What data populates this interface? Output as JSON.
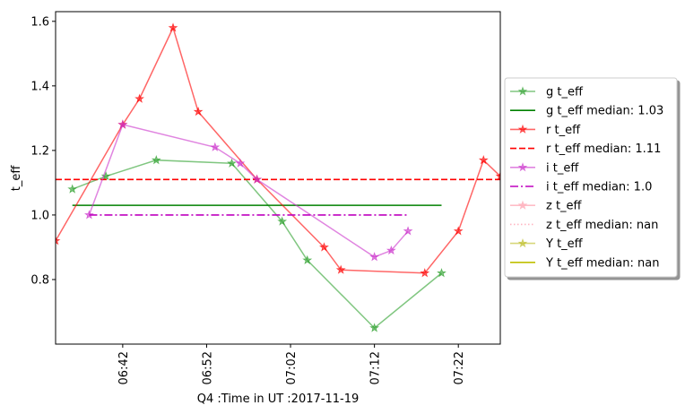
{
  "chart_data": {
    "type": "line",
    "ylabel": "t_eff",
    "xlabel": "Q4 :Time in UT :2017-11-19",
    "xlim": [
      "06:34",
      "07:27"
    ],
    "ylim": [
      0.6,
      1.63
    ],
    "y_ticks": [
      0.8,
      1.0,
      1.2,
      1.4,
      1.6
    ],
    "x_ticks": [
      "06:42",
      "06:52",
      "07:02",
      "07:12",
      "07:22"
    ],
    "grid": false,
    "legend_placement": "outside-right",
    "series": [
      {
        "name": "g t_eff",
        "color": "#2ca02c",
        "marker": "star",
        "points": [
          {
            "x": "06:36",
            "y": 1.08
          },
          {
            "x": "06:40",
            "y": 1.12
          },
          {
            "x": "06:46",
            "y": 1.17
          },
          {
            "x": "06:55",
            "y": 1.16
          },
          {
            "x": "07:01",
            "y": 0.98
          },
          {
            "x": "07:04",
            "y": 0.86
          },
          {
            "x": "07:12",
            "y": 0.65
          },
          {
            "x": "07:20",
            "y": 0.82
          }
        ]
      },
      {
        "name": "g t_eff median: 1.03",
        "color": "#008000",
        "style": "solid",
        "points": [
          {
            "x": "06:36",
            "y": 1.03
          },
          {
            "x": "07:20",
            "y": 1.03
          }
        ]
      },
      {
        "name": "r t_eff",
        "color": "#ff0000",
        "marker": "star",
        "points": [
          {
            "x": "06:34",
            "y": 0.92
          },
          {
            "x": "06:42",
            "y": 1.28
          },
          {
            "x": "06:44",
            "y": 1.36
          },
          {
            "x": "06:48",
            "y": 1.58
          },
          {
            "x": "06:51",
            "y": 1.32
          },
          {
            "x": "06:58",
            "y": 1.11
          },
          {
            "x": "07:06",
            "y": 0.9
          },
          {
            "x": "07:08",
            "y": 0.83
          },
          {
            "x": "07:18",
            "y": 0.82
          },
          {
            "x": "07:22",
            "y": 0.95
          },
          {
            "x": "07:25",
            "y": 1.17
          },
          {
            "x": "07:27",
            "y": 1.12
          }
        ]
      },
      {
        "name": "r t_eff median: 1.11",
        "color": "#ff0000",
        "style": "dashed",
        "points": [
          {
            "x": "06:34",
            "y": 1.11
          },
          {
            "x": "07:27",
            "y": 1.11
          }
        ]
      },
      {
        "name": "i t_eff",
        "color": "#cc33cc",
        "marker": "star",
        "points": [
          {
            "x": "06:38",
            "y": 1.0
          },
          {
            "x": "06:42",
            "y": 1.28
          },
          {
            "x": "06:53",
            "y": 1.21
          },
          {
            "x": "06:56",
            "y": 1.16
          },
          {
            "x": "06:58",
            "y": 1.11
          },
          {
            "x": "07:12",
            "y": 0.87
          },
          {
            "x": "07:14",
            "y": 0.89
          },
          {
            "x": "07:16",
            "y": 0.95
          }
        ]
      },
      {
        "name": "i t_eff median: 1.0",
        "color": "#bf00bf",
        "style": "dashdot",
        "points": [
          {
            "x": "06:38",
            "y": 1.0
          },
          {
            "x": "07:16",
            "y": 1.0
          }
        ]
      },
      {
        "name": "z t_eff",
        "color": "#ffb6c1",
        "marker": "star",
        "points": []
      },
      {
        "name": "z t_eff median: nan",
        "color": "#ffb6c1",
        "style": "dotted",
        "points": []
      },
      {
        "name": "Y t_eff",
        "color": "#bcbd22",
        "marker": "star",
        "points": []
      },
      {
        "name": "Y t_eff median: nan",
        "color": "#bfbf00",
        "style": "solid",
        "points": []
      }
    ]
  }
}
